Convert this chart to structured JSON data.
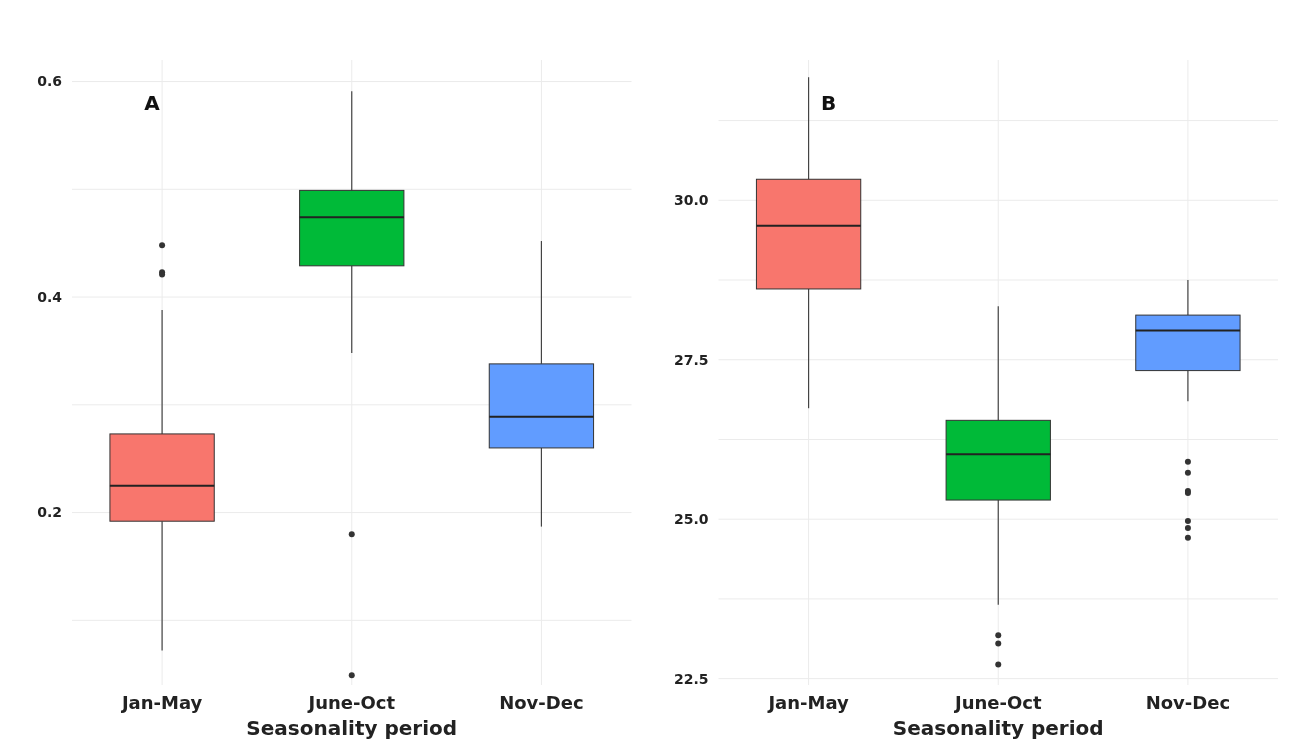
{
  "chart_data": [
    {
      "type": "box",
      "xlabel": "Seasonality period",
      "annotations": [
        "A"
      ],
      "categories": [
        "Jan-May",
        "June-Oct",
        "Nov-Dec"
      ],
      "colors": [
        "#f8766d",
        "#00ba38",
        "#619cff"
      ],
      "boxes": [
        {
          "low": 0.072,
          "q1": 0.192,
          "median": 0.225,
          "q3": 0.273,
          "high": 0.388,
          "outliers": [
            0.448,
            0.423,
            0.421
          ]
        },
        {
          "low": 0.348,
          "q1": 0.429,
          "median": 0.474,
          "q3": 0.499,
          "high": 0.591,
          "outliers": [
            0.18,
            0.049
          ]
        },
        {
          "low": 0.187,
          "q1": 0.26,
          "median": 0.289,
          "q3": 0.338,
          "high": 0.452
        }
      ],
      "ylim": [
        0.04,
        0.62
      ],
      "yticks": [
        {
          "value": 0.1,
          "label": null
        },
        0.2,
        {
          "value": 0.3,
          "label": null
        },
        0.4,
        {
          "value": 0.5,
          "label": null
        },
        0.6
      ],
      "grid": true
    },
    {
      "type": "box",
      "xlabel": "Seasonality period",
      "annotations": [
        "B"
      ],
      "categories": [
        "Jan-May",
        "June-Oct",
        "Nov-Dec"
      ],
      "colors": [
        "#f8766d",
        "#00ba38",
        "#619cff"
      ],
      "boxes": [
        {
          "low": 26.74,
          "q1": 28.61,
          "median": 29.6,
          "q3": 30.33,
          "high": 31.93
        },
        {
          "low": 23.66,
          "q1": 25.3,
          "median": 26.02,
          "q3": 26.55,
          "high": 28.34,
          "outliers": [
            23.18,
            23.05,
            22.72
          ]
        },
        {
          "low": 26.85,
          "q1": 27.33,
          "median": 27.96,
          "q3": 28.2,
          "high": 28.75,
          "outliers": [
            25.9,
            25.73,
            25.44,
            25.41,
            24.97,
            24.86,
            24.71
          ]
        }
      ],
      "ylim": [
        22.4,
        32.2
      ],
      "yticks": [
        "22.5",
        {
          "value": 23.75,
          "label": null
        },
        {
          "value": 25,
          "label": "25.0"
        },
        {
          "value": 26.25,
          "label": null
        },
        27.5,
        {
          "value": 28.75,
          "label": null
        },
        {
          "value": 30,
          "label": "30.0"
        },
        {
          "value": 31.25,
          "label": null
        }
      ],
      "grid": true
    }
  ]
}
